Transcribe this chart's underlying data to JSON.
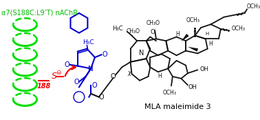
{
  "title_text": "α7(S188C:L9’T) nAChR",
  "title_color": "#00bb00",
  "title_fontsize": 7.0,
  "label_text": "MLA maleimide 3",
  "label_fontsize": 8,
  "label_color": "#000000",
  "num_text": "188",
  "num_color": "#ee0000",
  "background_color": "#ffffff",
  "helix_color": "#00dd00",
  "maleimide_color": "#0000cc",
  "structure_color": "#111111",
  "red_color": "#ee0000",
  "figsize": [
    3.78,
    1.74
  ],
  "dpi": 100
}
